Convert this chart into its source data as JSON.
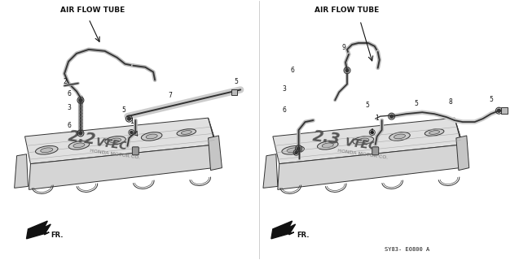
{
  "bg_color": "#ffffff",
  "left_label": "AIR FLOW TUBE",
  "right_label": "AIR FLOW TUBE",
  "diagram_ref": "SY83- E0800 A",
  "font_size_label": 6.5,
  "font_size_part": 5.5,
  "font_size_ref": 5.0,
  "gray": "#333333",
  "lgray": "#777777",
  "llgray": "#aaaaaa",
  "cover_fill": "#e8e8e8",
  "cover_fill2": "#d0d0d0"
}
